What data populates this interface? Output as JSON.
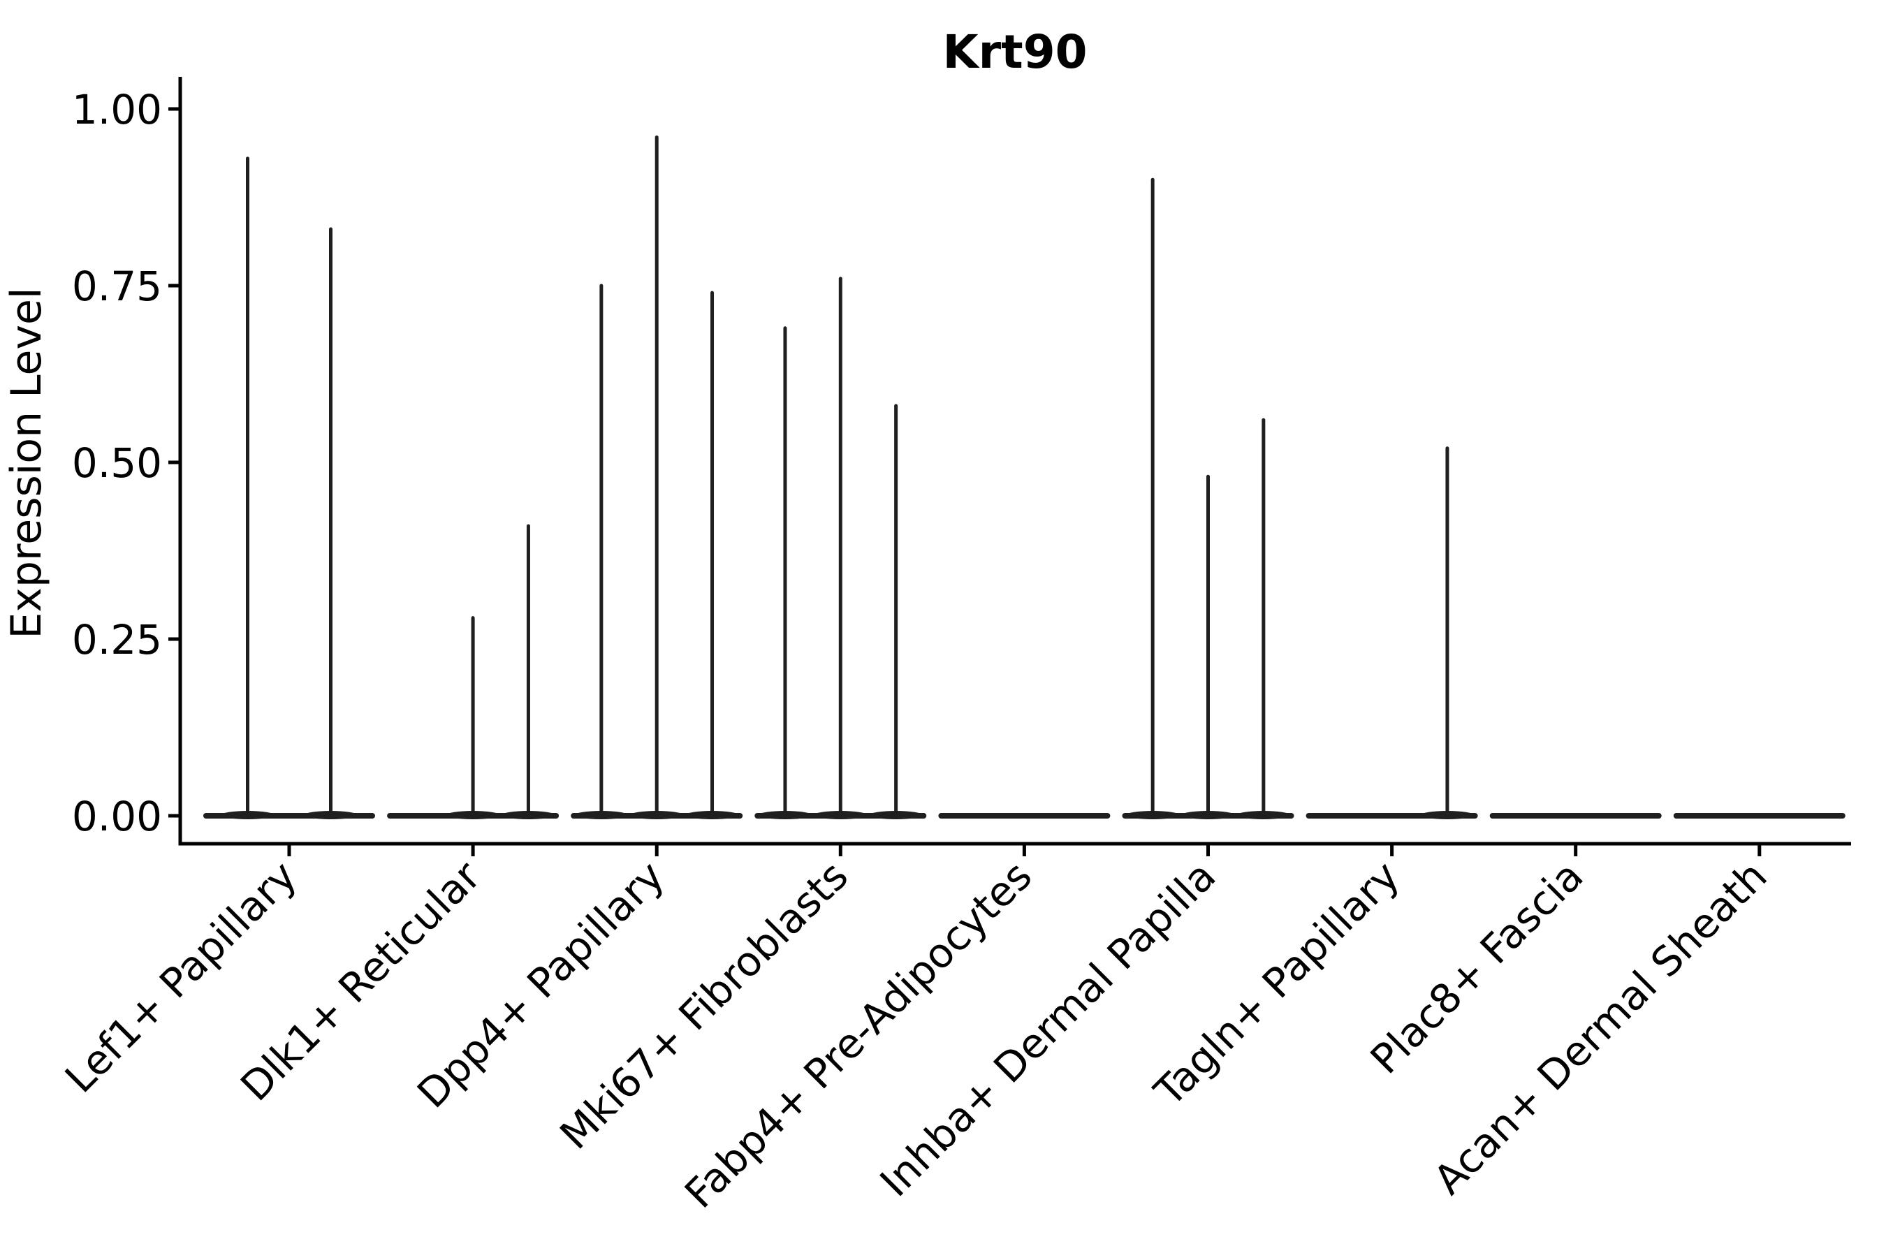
{
  "chart_data": {
    "type": "violin",
    "title": "Krt90",
    "ylabel": "Expression Level",
    "xlabel": "",
    "ylim": [
      -0.04,
      1.05
    ],
    "yticks": [
      0,
      0.25,
      0.5,
      0.75,
      1.0
    ],
    "ytick_labels": [
      "0.00",
      "0.25",
      "0.50",
      "0.75",
      "1.00"
    ],
    "grid": false,
    "legend_position": "none",
    "background_color": "#ffffff",
    "axis_color": "#000000",
    "violin_color": "#1f1f1f",
    "categories": [
      "Lef1+ Papillary",
      "Dlk1+ Reticular",
      "Dpp4+ Papillary",
      "Mki67+ Fibroblasts",
      "Fabp4+ Pre-Adipocytes",
      "Inhba+ Dermal Papilla",
      "Tagln+ Papillary",
      "Plac8+ Fascia",
      "Acan+ Dermal Sheath"
    ],
    "violins": [
      {
        "category": "Lef1+ Papillary",
        "peaks": [
          0.93,
          0.83
        ]
      },
      {
        "category": "Dlk1+ Reticular",
        "peaks": [
          0,
          0.28,
          0.41
        ]
      },
      {
        "category": "Dpp4+ Papillary",
        "peaks": [
          0.75,
          0.96,
          0.74
        ]
      },
      {
        "category": "Mki67+ Fibroblasts",
        "peaks": [
          0.69,
          0.76,
          0.58
        ]
      },
      {
        "category": "Fabp4+ Pre-Adipocytes",
        "peaks": [
          0,
          0,
          0
        ]
      },
      {
        "category": "Inhba+ Dermal Papilla",
        "peaks": [
          0.9,
          0.48,
          0.56
        ]
      },
      {
        "category": "Tagln+ Papillary",
        "peaks": [
          0,
          0,
          0.52
        ]
      },
      {
        "category": "Plac8+ Fascia",
        "peaks": [
          0,
          0,
          0
        ]
      },
      {
        "category": "Acan+ Dermal Sheath",
        "peaks": [
          0,
          0,
          0
        ]
      }
    ]
  }
}
